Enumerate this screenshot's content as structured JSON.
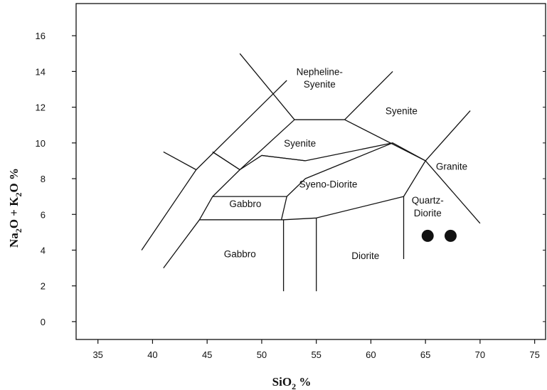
{
  "chart_data": {
    "type": "scatter",
    "title": "",
    "xlabel": {
      "base": "SiO",
      "sub": "2",
      "suffix": " %"
    },
    "ylabel": {
      "p1": "Na",
      "s1": "2",
      "p2": "O + K",
      "s2": "2",
      "p3": "O %"
    },
    "xlim": [
      33,
      76
    ],
    "ylim": [
      -1,
      17.8
    ],
    "xticks": [
      35,
      40,
      45,
      50,
      55,
      60,
      65,
      70,
      75
    ],
    "yticks": [
      0,
      2,
      4,
      6,
      8,
      10,
      12,
      14,
      16
    ],
    "grid": false,
    "boundaries": [
      [
        [
          39,
          4.0
        ],
        [
          44,
          8.5
        ],
        [
          52.3,
          13.5
        ]
      ],
      [
        [
          41,
          9.5
        ],
        [
          44,
          8.5
        ]
      ],
      [
        [
          41,
          3.0
        ],
        [
          44.3,
          5.7
        ],
        [
          52,
          5.7
        ],
        [
          55,
          5.8
        ],
        [
          63,
          7.0
        ],
        [
          65,
          9.0
        ],
        [
          70,
          5.5
        ]
      ],
      [
        [
          44.3,
          5.7
        ],
        [
          45.5,
          7.0
        ],
        [
          52.3,
          7.0
        ],
        [
          51.8,
          5.7
        ]
      ],
      [
        [
          52.3,
          7.0
        ],
        [
          54,
          8.0
        ],
        [
          58,
          9.0
        ],
        [
          62,
          10.0
        ],
        [
          65,
          9.0
        ],
        [
          69.1,
          11.8
        ]
      ],
      [
        [
          45.5,
          9.5
        ],
        [
          48,
          8.5
        ],
        [
          50,
          9.3
        ],
        [
          54,
          9.0
        ],
        [
          62,
          10.0
        ]
      ],
      [
        [
          48,
          8.5
        ],
        [
          53,
          11.3
        ],
        [
          57.6,
          11.3
        ],
        [
          65,
          9.0
        ]
      ],
      [
        [
          45.5,
          9.5
        ],
        [
          48,
          8.5
        ],
        [
          45.5,
          7.0
        ]
      ],
      [
        [
          48,
          15.0
        ],
        [
          53,
          11.3
        ]
      ],
      [
        [
          57.6,
          11.3
        ],
        [
          62,
          14.0
        ]
      ],
      [
        [
          52,
          5.7
        ],
        [
          52,
          1.7
        ]
      ],
      [
        [
          55,
          5.8
        ],
        [
          55,
          1.7
        ]
      ],
      [
        [
          63,
          7.0
        ],
        [
          63,
          3.5
        ]
      ],
      [
        [
          50,
          9.3
        ],
        [
          54,
          9.0
        ]
      ]
    ],
    "fields": [
      {
        "label": "Nepheline-",
        "x": 55.3,
        "y": 13.8
      },
      {
        "label": "Syenite",
        "x": 55.3,
        "y": 13.1
      },
      {
        "label": "Syenite",
        "x": 62.8,
        "y": 11.6
      },
      {
        "label": "Syenite",
        "x": 53.5,
        "y": 9.8
      },
      {
        "label": "Granite",
        "x": 67.4,
        "y": 8.5
      },
      {
        "label": "Syeno-Diorite",
        "x": 56.1,
        "y": 7.5
      },
      {
        "label": "Gabbro",
        "x": 48.5,
        "y": 6.4
      },
      {
        "label": "Quartz-",
        "x": 65.2,
        "y": 6.6
      },
      {
        "label": "Diorite",
        "x": 65.2,
        "y": 5.9
      },
      {
        "label": "Gabbro",
        "x": 48.0,
        "y": 3.6
      },
      {
        "label": "Diorite",
        "x": 59.5,
        "y": 3.5
      }
    ],
    "points": [
      {
        "x": 65.2,
        "y": 4.8
      },
      {
        "x": 67.3,
        "y": 4.8
      }
    ],
    "colors": {
      "line": "#111111",
      "point": "#111111"
    }
  }
}
